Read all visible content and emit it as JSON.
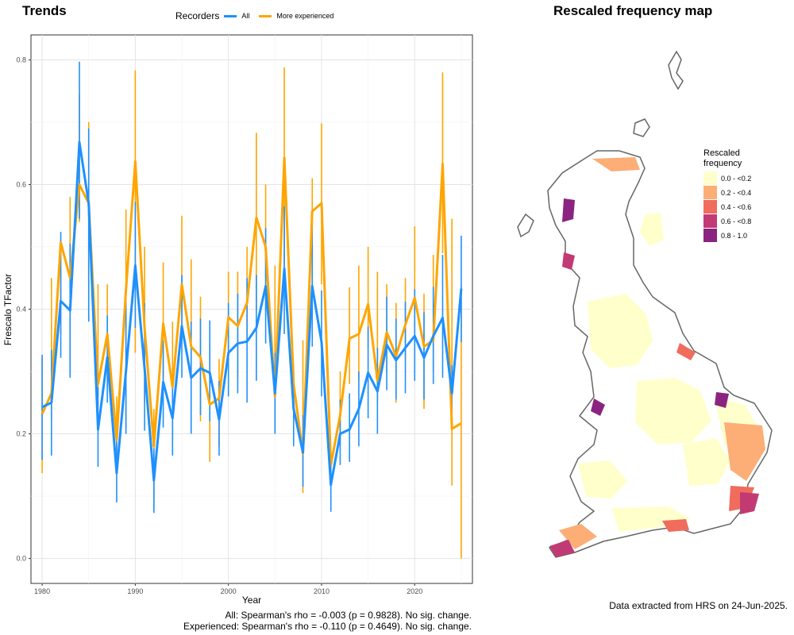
{
  "left_panel": {
    "title": "Trends",
    "legend": {
      "title": "Recorders",
      "items": [
        {
          "label": "All",
          "color": "#1E90FF"
        },
        {
          "label": "More experienced",
          "color": "#FFA500"
        }
      ]
    },
    "footer_lines": [
      "All: Spearman's rho = -0.003 (p = 0.9828). No sig. change.",
      "Experienced: Spearman's rho = -0.110 (p = 0.4649). No sig. change."
    ]
  },
  "right_panel": {
    "title": "Rescaled frequency map",
    "legend": {
      "title_lines": [
        "Rescaled",
        "frequency"
      ],
      "items": [
        {
          "label": "0.0 - <0.2",
          "color": "#FFFFCC"
        },
        {
          "label": "0.2 - <0.4",
          "color": "#FCAE76"
        },
        {
          "label": "0.4 - <0.6",
          "color": "#F06C5C"
        },
        {
          "label": "0.6 - <0.8",
          "color": "#C23A74"
        },
        {
          "label": "0.8 - 1.0",
          "color": "#8B2480"
        }
      ]
    },
    "footer": "Data extracted from HRS on 24-Jun-2025."
  },
  "chart_data": {
    "type": "line",
    "title": "Trends",
    "xlabel": "Year",
    "ylabel": "Frescalo TFactor",
    "xlim": [
      1978.8,
      2026.2
    ],
    "ylim": [
      -0.04,
      0.84
    ],
    "x_ticks": [
      1980,
      1990,
      2000,
      2010,
      2020
    ],
    "y_ticks": [
      0.0,
      0.2,
      0.4,
      0.6,
      0.8
    ],
    "y_tick_labels": [
      "0.0",
      "0.2",
      "0.4",
      "0.6",
      "0.8"
    ],
    "grid": true,
    "legend_position": "top",
    "series": [
      {
        "name": "All",
        "color": "#1E90FF",
        "points": [
          [
            1980,
            0.243,
            0.158,
            0.327
          ],
          [
            1981,
            0.25,
            0.165,
            0.335
          ],
          [
            1982,
            0.413,
            0.322,
            0.524
          ],
          [
            1983,
            0.398,
            0.29,
            0.505
          ],
          [
            1984,
            0.668,
            0.545,
            0.797
          ],
          [
            1985,
            0.57,
            0.38,
            0.69
          ],
          [
            1986,
            0.207,
            0.147,
            0.275
          ],
          [
            1987,
            0.323,
            0.25,
            0.39
          ],
          [
            1988,
            0.137,
            0.09,
            0.19
          ],
          [
            1989,
            0.3,
            0.2,
            0.41
          ],
          [
            1990,
            0.47,
            0.37,
            0.572
          ],
          [
            1991,
            0.305,
            0.205,
            0.41
          ],
          [
            1992,
            0.125,
            0.073,
            0.177
          ],
          [
            1993,
            0.283,
            0.21,
            0.35
          ],
          [
            1994,
            0.225,
            0.165,
            0.29
          ],
          [
            1995,
            0.373,
            0.29,
            0.455
          ],
          [
            1996,
            0.29,
            0.2,
            0.38
          ],
          [
            1997,
            0.305,
            0.23,
            0.385
          ],
          [
            1998,
            0.298,
            0.22,
            0.382
          ],
          [
            1999,
            0.223,
            0.165,
            0.285
          ],
          [
            2000,
            0.33,
            0.26,
            0.41
          ],
          [
            2001,
            0.345,
            0.265,
            0.425
          ],
          [
            2002,
            0.348,
            0.25,
            0.45
          ],
          [
            2003,
            0.37,
            0.285,
            0.455
          ],
          [
            2004,
            0.437,
            0.345,
            0.53
          ],
          [
            2005,
            0.265,
            0.2,
            0.33
          ],
          [
            2006,
            0.465,
            0.36,
            0.565
          ],
          [
            2007,
            0.24,
            0.18,
            0.3
          ],
          [
            2008,
            0.17,
            0.115,
            0.23
          ],
          [
            2009,
            0.437,
            0.34,
            0.535
          ],
          [
            2010,
            0.347,
            0.26,
            0.43
          ],
          [
            2011,
            0.118,
            0.075,
            0.16
          ],
          [
            2012,
            0.2,
            0.15,
            0.255
          ],
          [
            2013,
            0.207,
            0.155,
            0.265
          ],
          [
            2014,
            0.24,
            0.18,
            0.3
          ],
          [
            2015,
            0.298,
            0.225,
            0.372
          ],
          [
            2016,
            0.268,
            0.2,
            0.338
          ],
          [
            2017,
            0.343,
            0.27,
            0.42
          ],
          [
            2018,
            0.318,
            0.255,
            0.385
          ],
          [
            2019,
            0.338,
            0.265,
            0.412
          ],
          [
            2020,
            0.357,
            0.285,
            0.432
          ],
          [
            2021,
            0.322,
            0.255,
            0.395
          ],
          [
            2022,
            0.357,
            0.28,
            0.436
          ],
          [
            2023,
            0.386,
            0.29,
            0.487
          ],
          [
            2024,
            0.265,
            0.225,
            0.31
          ],
          [
            2025,
            0.433,
            0.347,
            0.518
          ]
        ]
      },
      {
        "name": "More experienced",
        "color": "#FFA500",
        "points": [
          [
            1980,
            0.232,
            0.137,
            0.323
          ],
          [
            1981,
            0.265,
            0.222,
            0.45
          ],
          [
            1982,
            0.507,
            0.36,
            0.51
          ],
          [
            1983,
            0.45,
            0.3,
            0.58
          ],
          [
            1984,
            0.6,
            0.54,
            0.745
          ],
          [
            1985,
            0.57,
            0.44,
            0.7
          ],
          [
            1986,
            0.28,
            0.26,
            0.44
          ],
          [
            1987,
            0.36,
            0.3,
            0.44
          ],
          [
            1988,
            0.19,
            0.17,
            0.26
          ],
          [
            1989,
            0.43,
            0.21,
            0.56
          ],
          [
            1990,
            0.637,
            0.33,
            0.783
          ],
          [
            1991,
            0.37,
            0.25,
            0.5
          ],
          [
            1992,
            0.18,
            0.08,
            0.24
          ],
          [
            1993,
            0.377,
            0.29,
            0.475
          ],
          [
            1994,
            0.275,
            0.19,
            0.38
          ],
          [
            1995,
            0.44,
            0.35,
            0.55
          ],
          [
            1996,
            0.34,
            0.28,
            0.48
          ],
          [
            1997,
            0.323,
            0.22,
            0.42
          ],
          [
            1998,
            0.247,
            0.155,
            0.345
          ],
          [
            1999,
            0.257,
            0.18,
            0.32
          ],
          [
            2000,
            0.387,
            0.31,
            0.46
          ],
          [
            2001,
            0.373,
            0.29,
            0.46
          ],
          [
            2002,
            0.41,
            0.35,
            0.5
          ],
          [
            2003,
            0.547,
            0.4,
            0.683
          ],
          [
            2004,
            0.5,
            0.39,
            0.6
          ],
          [
            2005,
            0.26,
            0.2,
            0.47
          ],
          [
            2006,
            0.643,
            0.44,
            0.788
          ],
          [
            2007,
            0.28,
            0.22,
            0.31
          ],
          [
            2008,
            0.168,
            0.105,
            0.35
          ],
          [
            2009,
            0.557,
            0.4,
            0.61
          ],
          [
            2010,
            0.57,
            0.44,
            0.698
          ],
          [
            2011,
            0.15,
            0.115,
            0.18
          ],
          [
            2012,
            0.23,
            0.18,
            0.3
          ],
          [
            2013,
            0.353,
            0.28,
            0.435
          ],
          [
            2014,
            0.36,
            0.285,
            0.47
          ],
          [
            2015,
            0.408,
            0.34,
            0.5
          ],
          [
            2016,
            0.285,
            0.25,
            0.46
          ],
          [
            2017,
            0.363,
            0.3,
            0.44
          ],
          [
            2018,
            0.325,
            0.25,
            0.41
          ],
          [
            2019,
            0.375,
            0.32,
            0.45
          ],
          [
            2020,
            0.418,
            0.31,
            0.533
          ],
          [
            2021,
            0.34,
            0.24,
            0.425
          ],
          [
            2022,
            0.35,
            0.3,
            0.487
          ],
          [
            2023,
            0.633,
            0.49,
            0.78
          ],
          [
            2024,
            0.208,
            0.117,
            0.545
          ],
          [
            2025,
            0.217,
            0.0,
            0.437
          ]
        ]
      }
    ]
  }
}
